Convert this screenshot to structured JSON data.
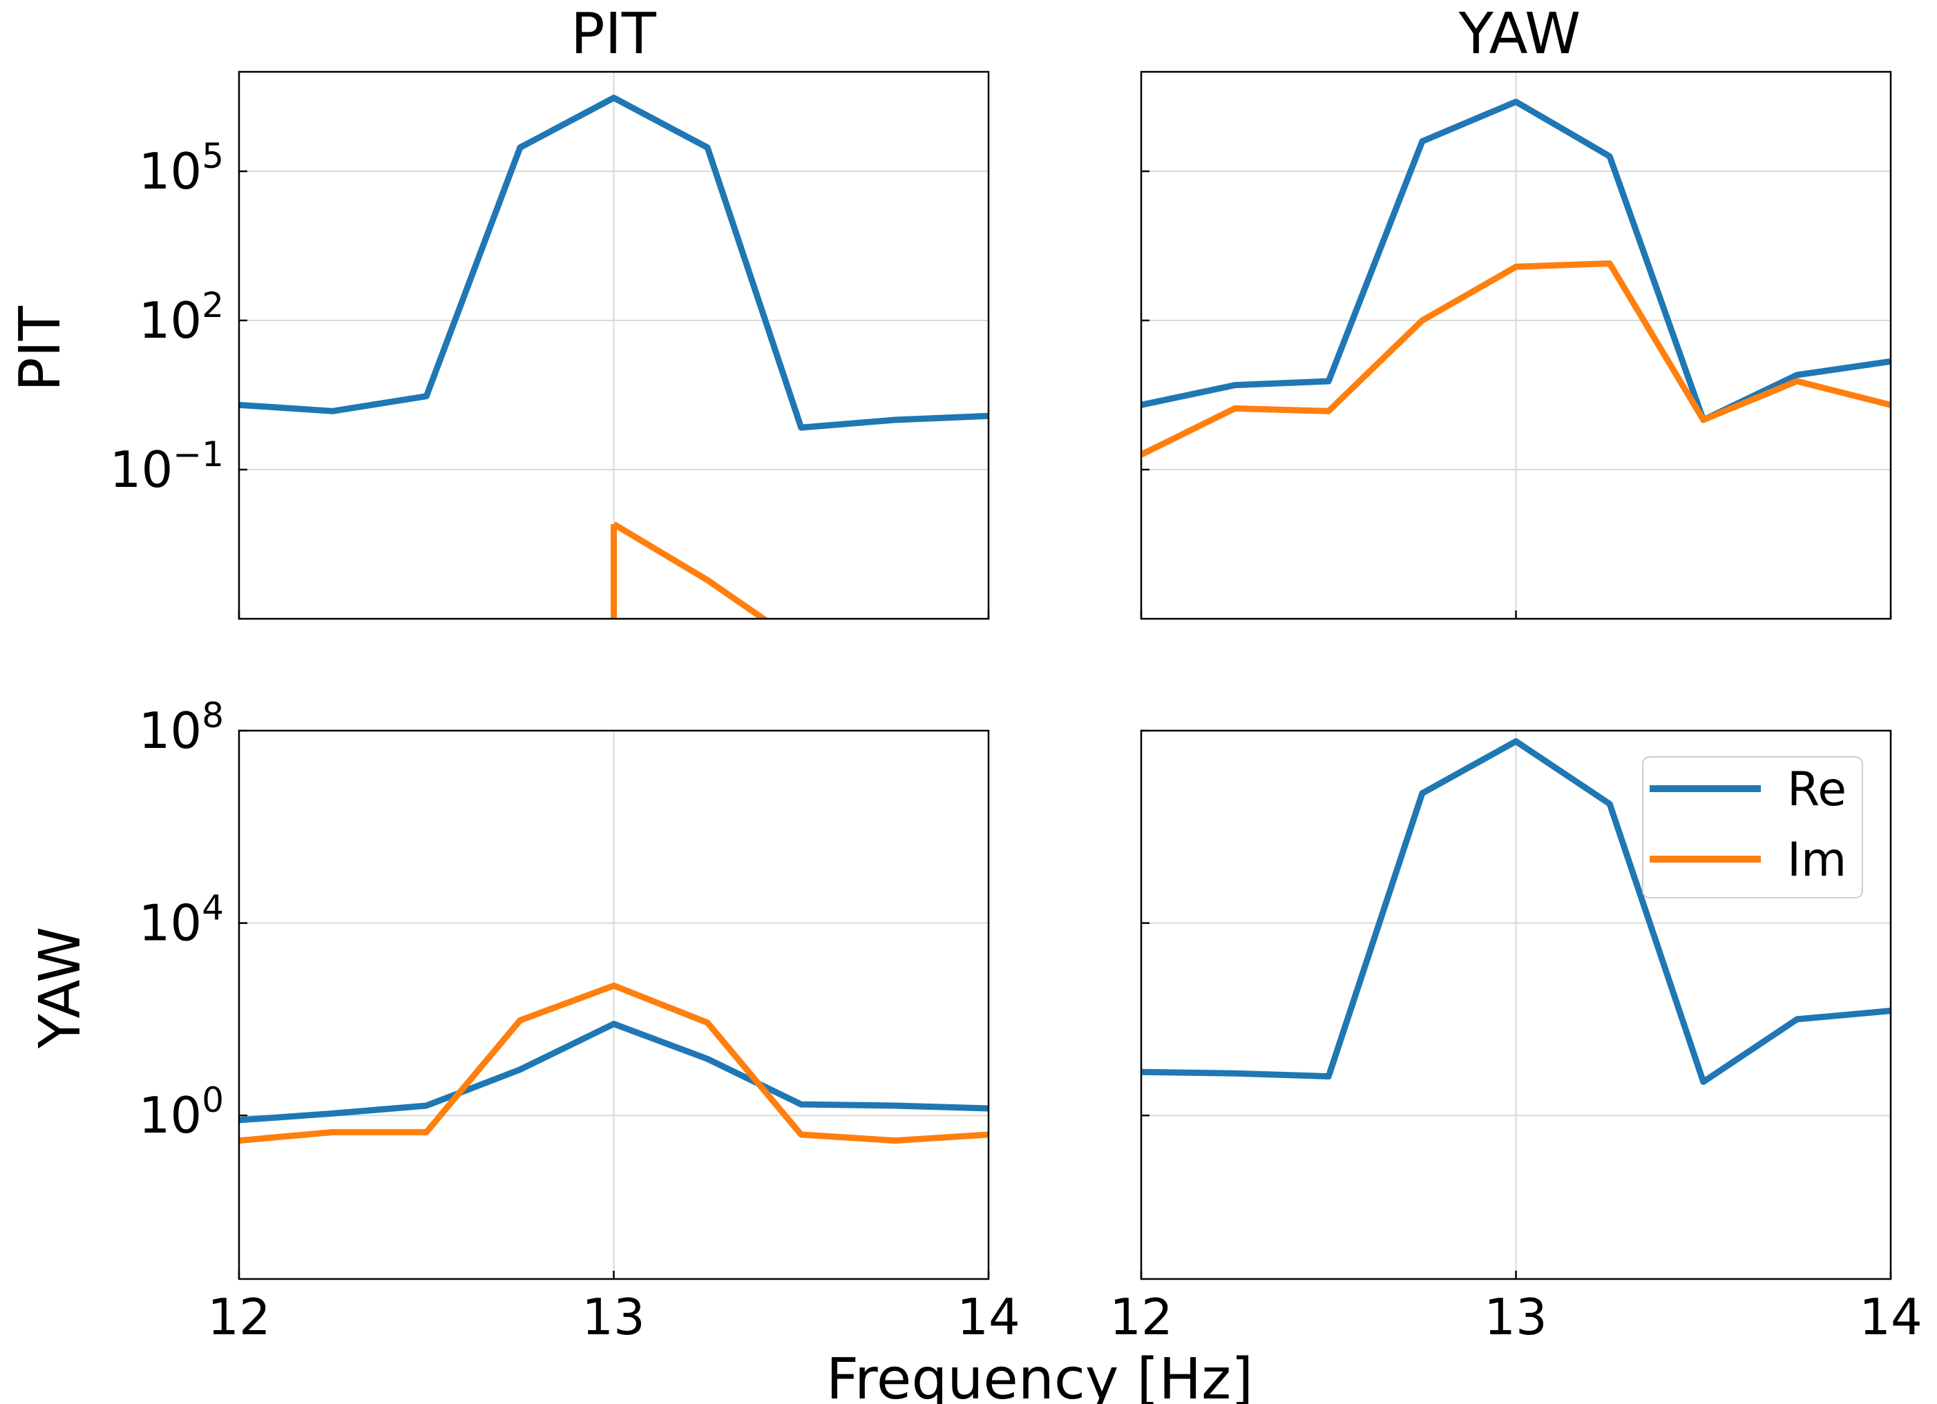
{
  "chart_data": {
    "type": "line",
    "xlabel": "Frequency [Hz]",
    "xlim": [
      12,
      14
    ],
    "x_ticks": [
      12,
      13,
      14
    ],
    "columns": [
      "PIT",
      "YAW"
    ],
    "rows": [
      "PIT",
      "YAW"
    ],
    "legend": {
      "location": "upper right of bottom-right subplot",
      "entries": [
        {
          "name": "Re",
          "color": "#1f77b4"
        },
        {
          "name": "Im",
          "color": "#ff7f0e"
        }
      ]
    },
    "series_colors": {
      "Re": "#1f77b4",
      "Im": "#ff7f0e"
    },
    "panel_rows": [
      {
        "row_label": "PIT",
        "yscale": "log",
        "ylim_log10": [
          -4,
          7
        ],
        "yticks": [
          {
            "log10": 5,
            "label": "10^5"
          },
          {
            "log10": 2,
            "label": "10^2"
          },
          {
            "log10": -1,
            "label": "10^-1"
          }
        ],
        "panels": [
          {
            "column": "PIT",
            "x": [
              12.0,
              12.25,
              12.5,
              12.75,
              13.0,
              13.25,
              13.5,
              13.75,
              14.0
            ],
            "series": [
              {
                "name": "Re",
                "values": [
                  2.0,
                  1.5,
                  3.0,
                  300000,
                  3000000,
                  300000,
                  0.7,
                  1.0,
                  1.2
                ]
              },
              {
                "name": "Im",
                "values": [
                  null,
                  null,
                  null,
                  null,
                  0.008,
                  0.0006,
                  3e-05,
                  null,
                  null
                ]
              }
            ]
          },
          {
            "column": "YAW",
            "x": [
              12.0,
              12.25,
              12.5,
              12.75,
              13.0,
              13.25,
              13.5,
              13.75,
              14.0
            ],
            "series": [
              {
                "name": "Re",
                "values": [
                  2.0,
                  5.0,
                  6.0,
                  400000,
                  2500000,
                  200000,
                  1.0,
                  8.0,
                  15.0
                ]
              },
              {
                "name": "Im",
                "values": [
                  0.2,
                  1.7,
                  1.5,
                  100,
                  1200,
                  1400,
                  1.0,
                  6.0,
                  2.0
                ]
              }
            ]
          }
        ]
      },
      {
        "row_label": "YAW",
        "yscale": "log",
        "ylim_log10": [
          -3.4,
          8
        ],
        "yticks": [
          {
            "log10": 8,
            "label": "10^8"
          },
          {
            "log10": 4,
            "label": "10^4"
          },
          {
            "log10": 0,
            "label": "10^0"
          }
        ],
        "panels": [
          {
            "column": "PIT",
            "x": [
              12.0,
              12.25,
              12.5,
              12.75,
              13.0,
              13.25,
              13.5,
              13.75,
              14.0
            ],
            "series": [
              {
                "name": "Re",
                "values": [
                  0.8,
                  1.1,
                  1.6,
                  9.0,
                  80.0,
                  15.0,
                  1.7,
                  1.6,
                  1.4
                ]
              },
              {
                "name": "Im",
                "values": [
                  0.3,
                  0.45,
                  0.45,
                  95.0,
                  500.0,
                  85.0,
                  0.4,
                  0.3,
                  0.4
                ]
              }
            ]
          },
          {
            "column": "YAW",
            "x": [
              12.0,
              12.25,
              12.5,
              12.75,
              13.0,
              13.25,
              13.5,
              13.75,
              14.0
            ],
            "series": [
              {
                "name": "Re",
                "values": [
                  8.0,
                  7.5,
                  6.5,
                  5000000,
                  60000000,
                  3000000,
                  5.0,
                  100.0,
                  150.0
                ]
              }
            ]
          }
        ]
      }
    ]
  }
}
